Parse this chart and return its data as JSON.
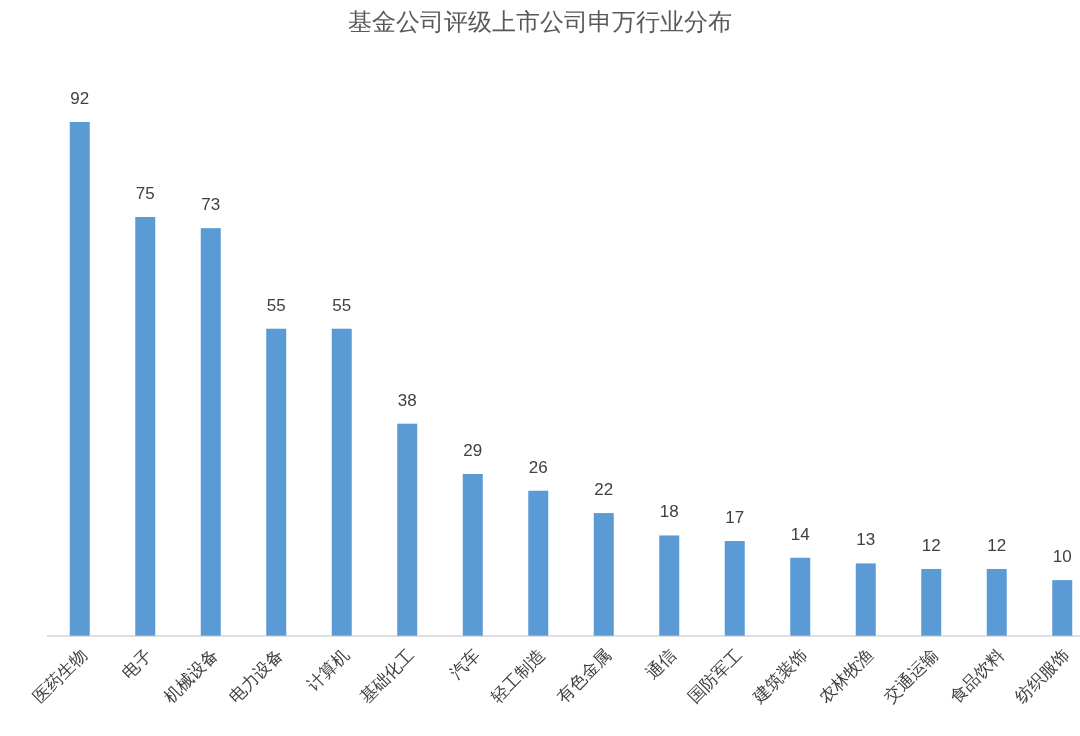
{
  "chart_data": {
    "type": "bar",
    "title": "基金公司评级上市公司申万行业分布",
    "categories": [
      "医药生物",
      "电子",
      "机械设备",
      "电力设备",
      "计算机",
      "基础化工",
      "汽车",
      "轻工制造",
      "有色金属",
      "通信",
      "国防军工",
      "建筑装饰",
      "农林牧渔",
      "交通运输",
      "食品饮料",
      "纺织服饰"
    ],
    "values": [
      92,
      75,
      73,
      55,
      55,
      38,
      29,
      26,
      22,
      18,
      17,
      14,
      13,
      12,
      12,
      10
    ],
    "color": "#5b9bd5",
    "data_labels": true
  }
}
